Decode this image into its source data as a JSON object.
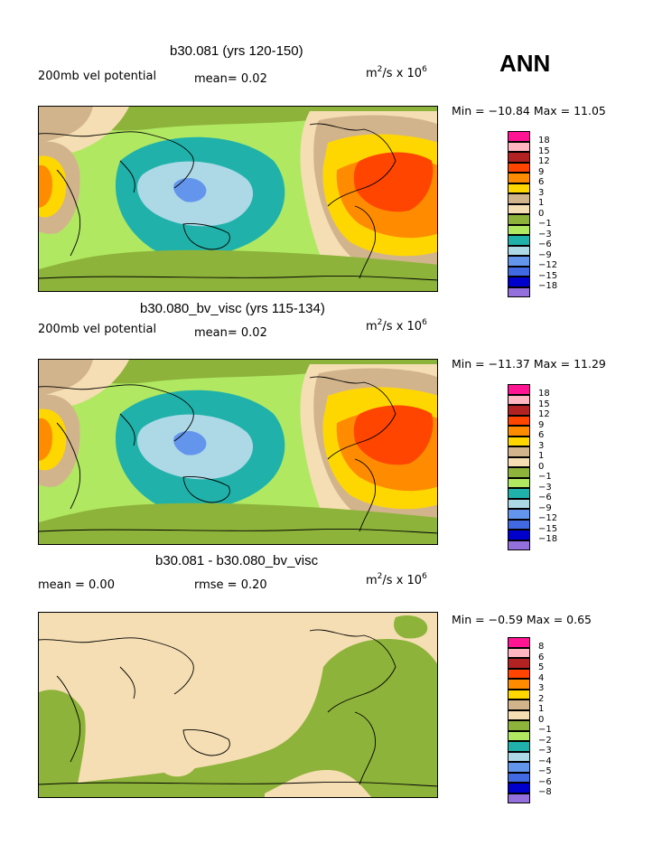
{
  "season": "ANN",
  "panels": [
    {
      "title": "b30.081 (yrs 120-150)",
      "left_label": "200mb vel potential",
      "mid_label": "mean=   0.02",
      "units_base": "m",
      "units_sup1": "2",
      "units_mid": "/s x 10",
      "units_sup2": "6",
      "minmax": "Min = −10.84 Max =  11.05",
      "legend": [
        "18",
        "15",
        "12",
        "9",
        "6",
        "3",
        "1",
        "0",
        "−1",
        "−3",
        "−6",
        "−9",
        "−12",
        "−15",
        "−18"
      ]
    },
    {
      "title": "b30.080_bv_visc (yrs 115-134)",
      "left_label": "200mb vel potential",
      "mid_label": "mean=   0.02",
      "units_base": "m",
      "units_sup1": "2",
      "units_mid": "/s x 10",
      "units_sup2": "6",
      "minmax": "Min = −11.37 Max =  11.29",
      "legend": [
        "18",
        "15",
        "12",
        "9",
        "6",
        "3",
        "1",
        "0",
        "−1",
        "−3",
        "−6",
        "−9",
        "−12",
        "−15",
        "−18"
      ]
    },
    {
      "title": "b30.081 - b30.080_bv_visc",
      "left_label": "mean =    0.00",
      "mid_label": "rmse =    0.20",
      "units_base": "m",
      "units_sup1": "2",
      "units_mid": "/s x 10",
      "units_sup2": "6",
      "minmax": "Min =  −0.59 Max =   0.65",
      "legend": [
        "8",
        "6",
        "5",
        "4",
        "3",
        "2",
        "1",
        "0",
        "−1",
        "−2",
        "−3",
        "−4",
        "−5",
        "−6",
        "−8"
      ]
    }
  ],
  "colors": [
    "#ff1493",
    "#ffb6c1",
    "#b22222",
    "#ff4500",
    "#ff8c00",
    "#ffd700",
    "#d2b48c",
    "#f5deb3",
    "#8db33a",
    "#b0e862",
    "#20b2aa",
    "#add8e6",
    "#6495ed",
    "#4169e1",
    "#0000cd",
    "#9370db"
  ]
}
